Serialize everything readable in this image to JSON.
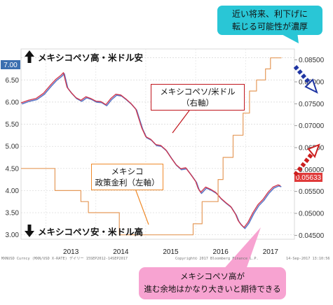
{
  "chart_data": {
    "type": "line",
    "x_ticks": [
      "2013",
      "2014",
      "2015",
      "2016",
      "2017"
    ],
    "y_left": {
      "ticks": [
        "7.00",
        "6.50",
        "6.00",
        "5.50",
        "5.00",
        "4.50",
        "4.00",
        "3.50",
        "3.00"
      ],
      "range": [
        2.9,
        7.2
      ],
      "last_value_label": "7.00"
    },
    "y_right": {
      "ticks": [
        "0.08500",
        "0.08000",
        "0.07500",
        "0.07000",
        "0.06500",
        "0.06000",
        "0.05500",
        "0.05000",
        "0.04500"
      ],
      "range": [
        0.0441,
        0.0875
      ],
      "last_value_label": "0.05633"
    },
    "series": [
      {
        "name": "メキシコペソ/米ドル（右軸）",
        "axis": "right",
        "color": "#d2344a",
        "x": [
          2012.5,
          2012.65,
          2012.8,
          2012.95,
          2013.1,
          2013.2,
          2013.3,
          2013.35,
          2013.42,
          2013.5,
          2013.6,
          2013.7,
          2013.8,
          2013.9,
          2014.0,
          2014.1,
          2014.2,
          2014.3,
          2014.4,
          2014.5,
          2014.6,
          2014.7,
          2014.8,
          2014.85,
          2014.92,
          2015.0,
          2015.1,
          2015.2,
          2015.3,
          2015.4,
          2015.5,
          2015.6,
          2015.7,
          2015.8,
          2015.9,
          2016.0,
          2016.05,
          2016.1,
          2016.2,
          2016.3,
          2016.4,
          2016.5,
          2016.6,
          2016.7,
          2016.8,
          2016.85,
          2016.9,
          2016.97,
          2017.05,
          2017.15,
          2017.25,
          2017.35,
          2017.45,
          2017.55,
          2017.65,
          2017.7
        ],
        "y": [
          0.0752,
          0.0758,
          0.0762,
          0.0774,
          0.0794,
          0.0806,
          0.0815,
          0.0821,
          0.0788,
          0.0776,
          0.0764,
          0.0758,
          0.0766,
          0.0762,
          0.0756,
          0.0755,
          0.0748,
          0.0762,
          0.0772,
          0.077,
          0.0761,
          0.0751,
          0.0738,
          0.072,
          0.0695,
          0.0675,
          0.0669,
          0.0657,
          0.0655,
          0.0645,
          0.0628,
          0.0612,
          0.0602,
          0.0604,
          0.0589,
          0.0573,
          0.0557,
          0.0548,
          0.056,
          0.0555,
          0.0548,
          0.0535,
          0.0525,
          0.0516,
          0.0498,
          0.0484,
          0.0476,
          0.0468,
          0.048,
          0.0502,
          0.052,
          0.0532,
          0.0548,
          0.056,
          0.0565,
          0.0563
        ]
      },
      {
        "name": "メキシコ政策金利（左軸）",
        "axis": "left",
        "color": "#e59a5a",
        "x": [
          2012.5,
          2013.18,
          2013.18,
          2013.7,
          2013.7,
          2013.85,
          2013.85,
          2014.47,
          2014.47,
          2015.95,
          2015.95,
          2016.13,
          2016.13,
          2016.45,
          2016.45,
          2016.55,
          2016.55,
          2016.75,
          2016.75,
          2016.95,
          2016.95,
          2017.08,
          2017.08,
          2017.22,
          2017.22,
          2017.4,
          2017.4,
          2017.5,
          2017.5,
          2017.72
        ],
        "y": [
          4.5,
          4.5,
          4.0,
          4.0,
          3.75,
          3.75,
          3.5,
          3.5,
          3.0,
          3.0,
          3.25,
          3.25,
          3.75,
          3.75,
          4.25,
          4.25,
          4.75,
          4.75,
          5.25,
          5.25,
          5.75,
          5.75,
          6.25,
          6.25,
          6.5,
          6.5,
          6.75,
          6.75,
          7.0,
          7.0
        ]
      }
    ]
  },
  "labels": {
    "top_arrow": "メキシコペソ高・米ドル安",
    "bottom_arrow": "メキシコペソ安・米ドル高",
    "peso_callout_line1": "メキシコペソ/米ドル",
    "peso_callout_line2": "（右軸）",
    "rate_callout_line1": "メキシコ",
    "rate_callout_line2": "政策金利（左軸）",
    "forecast_callout_line1": "近い将来、利下げに",
    "forecast_callout_line2": "転じる可能性が濃厚",
    "expect_callout_line1": "メキシコペソ高が",
    "expect_callout_line2": "進む余地はかなり大きいと期待できる",
    "footer_left": "MXNUSD Curncy (MXN/USD X-RATE) デイリー 15SEP2012-14SEP2017",
    "footer_mid": "Copyright© 2017 Bloomberg Finance L.P.",
    "footer_right": "14-Sep-2017 13:10:56"
  },
  "colors": {
    "peso_line": "#d2344a",
    "peso_line_shadow": "#5b78c8",
    "rate_line": "#e59a5a",
    "left_value_badge": "#3b6fb0",
    "right_value_badge": "#e03a3a",
    "forecast_bg": "#29c6d6",
    "expect_bg": "#f7a3d1",
    "down_arrow": "#1f35a3",
    "up_arrow": "#cc1f1f",
    "peso_callout_border": "#c0141c",
    "rate_callout_border": "#ef8a2a"
  }
}
